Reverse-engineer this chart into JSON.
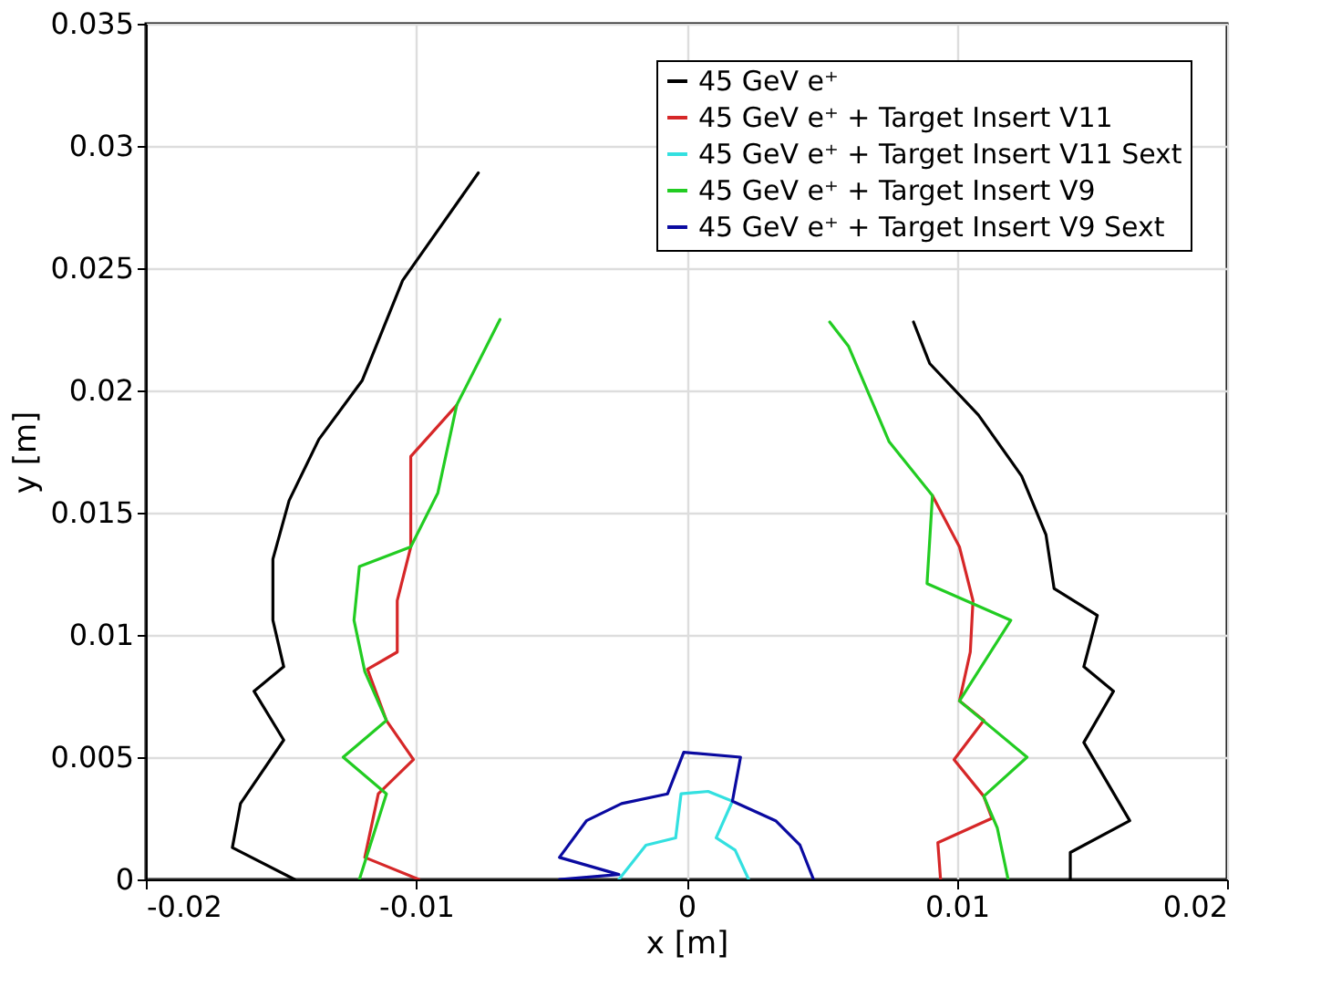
{
  "chart_data": {
    "type": "line",
    "xlabel": "x [m]",
    "ylabel": "y [m]",
    "xlim": [
      -0.02,
      0.02
    ],
    "ylim": [
      0,
      0.035
    ],
    "xticks": [
      -0.02,
      -0.01,
      0,
      0.01,
      0.02
    ],
    "yticks": [
      0,
      0.005,
      0.01,
      0.015,
      0.02,
      0.025,
      0.03,
      0.035
    ],
    "grid": true,
    "legend": "top right",
    "series": [
      {
        "name": "45 GeV e⁺",
        "color": "#000000",
        "x": [
          0.0142,
          0.0142,
          0.0164,
          0.0147,
          0.0158,
          0.0147,
          0.0152,
          0.0136,
          0.0133,
          0.0124,
          0.0108,
          0.009,
          0.0084,
          null,
          -0.0077,
          -0.0105,
          -0.012,
          -0.0136,
          -0.0147,
          -0.0153,
          -0.0153,
          -0.0149,
          -0.016,
          -0.0149,
          -0.0165,
          -0.0168,
          -0.0145
        ],
        "values": [
          0,
          0.0011,
          0.0024,
          0.0056,
          0.0077,
          0.0087,
          0.0108,
          0.0119,
          0.0141,
          0.0165,
          0.019,
          0.0211,
          0.0228,
          null,
          0.0289,
          0.0245,
          0.0204,
          0.018,
          0.0155,
          0.0131,
          0.0106,
          0.0087,
          0.0077,
          0.0057,
          0.0031,
          0.0013,
          0
        ]
      },
      {
        "name": "45 GeV e⁺ + Target Insert V11",
        "color": "#d62728",
        "x": [
          -0.0099,
          -0.0119,
          -0.0114,
          -0.0101,
          -0.0111,
          -0.0118,
          -0.0107,
          -0.0107,
          -0.0102,
          -0.0102,
          -0.0085,
          null,
          0.0091,
          0.0101,
          0.0106,
          0.0105,
          0.0101,
          0.011,
          0.0099,
          0.011,
          0.0113,
          0.0093,
          0.0094
        ],
        "values": [
          0,
          0.0009,
          0.0035,
          0.0049,
          0.0065,
          0.0086,
          0.0093,
          0.0114,
          0.0136,
          0.0173,
          0.0194,
          null,
          0.0157,
          0.0136,
          0.0114,
          0.0093,
          0.0073,
          0.0065,
          0.0049,
          0.0034,
          0.0025,
          0.0015,
          0
        ]
      },
      {
        "name": "45 GeV e⁺ + Target Insert V11 Sext",
        "color": "#33e0e0",
        "x": [
          -0.0025,
          -0.0015,
          -0.0004,
          -0.0002,
          0.0008,
          0.0017,
          0.0011,
          0.0018,
          0.0023
        ],
        "values": [
          0,
          0.0014,
          0.0017,
          0.0035,
          0.0036,
          0.0032,
          0.0017,
          0.0012,
          0
        ]
      },
      {
        "name": "45 GeV e⁺ + Target Insert V9",
        "color": "#22cc22",
        "x": [
          -0.0121,
          -0.0111,
          -0.0127,
          -0.0111,
          -0.0119,
          -0.0123,
          -0.0121,
          -0.0102,
          -0.0092,
          -0.0085,
          -0.0069,
          null,
          0.0053,
          0.006,
          0.0075,
          0.0091,
          0.0089,
          0.012,
          0.0101,
          0.0126,
          0.011,
          0.0115,
          0.0119
        ],
        "values": [
          0,
          0.0035,
          0.005,
          0.0065,
          0.0085,
          0.0106,
          0.0128,
          0.0136,
          0.0158,
          0.0194,
          0.0229,
          null,
          0.0228,
          0.0218,
          0.0179,
          0.0157,
          0.0121,
          0.0106,
          0.0073,
          0.005,
          0.0034,
          0.0021,
          0
        ]
      },
      {
        "name": "45 GeV e⁺ + Target Insert V9 Sext",
        "color": "#0a0aa0",
        "x": [
          -0.0047,
          -0.0025,
          -0.0047,
          -0.0037,
          -0.0024,
          -0.0007,
          -0.0001,
          0.002,
          0.0017,
          0.0033,
          0.0042,
          0.0047
        ],
        "values": [
          0,
          0.0002,
          0.0009,
          0.0024,
          0.0031,
          0.0035,
          0.0052,
          0.005,
          0.0032,
          0.0024,
          0.0014,
          0
        ]
      }
    ]
  }
}
